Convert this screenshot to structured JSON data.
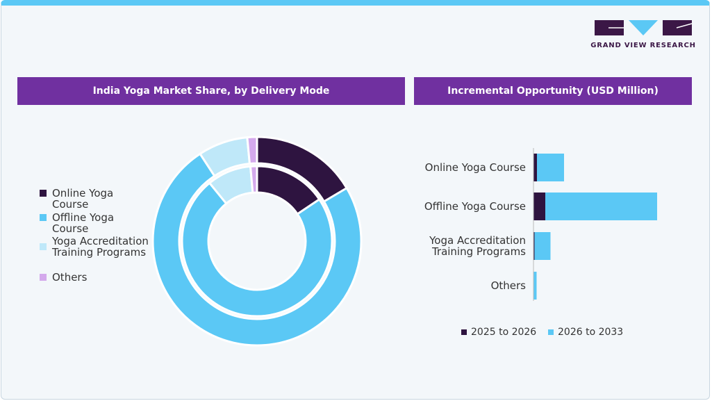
{
  "logo": "GRAND VIEW RESEARCH",
  "chart_data": [
    {
      "type": "donut",
      "title": "India Yoga Market Share, by Delivery Mode",
      "categories": [
        "Online Yoga Course",
        "Offline Yoga Course",
        "Yoga Accreditation Training Programs",
        "Others"
      ],
      "colors": [
        "#2e1440",
        "#5bc8f5",
        "#bfe8f9",
        "#d4a9ec"
      ],
      "series": [
        {
          "values": [
            16.5,
            74.3,
            7.7,
            1.5
          ]
        },
        {
          "values": [
            15.6,
            73.5,
            9.5,
            1.4
          ]
        }
      ]
    },
    {
      "type": "stacked-hbar",
      "title": "Incremental Opportunity (USD Million)",
      "categories": [
        "Online Yoga Course",
        "Offline Yoga Course",
        "Yoga Accreditation Training Programs",
        "Others"
      ],
      "series": [
        {
          "name": "2025 to 2026",
          "color": "#2e1440",
          "values": [
            5,
            17,
            1.5,
            0.5
          ]
        },
        {
          "name": "2026 to 2033",
          "color": "#5bc8f5",
          "values": [
            39,
            161,
            23,
            4
          ]
        }
      ]
    }
  ]
}
